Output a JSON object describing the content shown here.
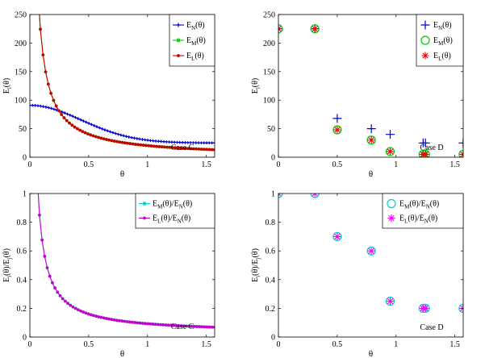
{
  "chart_data": [
    {
      "id": "top-left",
      "type": "line",
      "xlim": [
        0,
        1.5708
      ],
      "ylim": [
        0,
        250
      ],
      "xticks": [
        "0",
        "0.5",
        "1",
        "1.5"
      ],
      "xtick_values": [
        0,
        0.5,
        1,
        1.5
      ],
      "yticks": [
        "0",
        "50",
        "100",
        "150",
        "200",
        "250"
      ],
      "ytick_values": [
        0,
        50,
        100,
        150,
        200,
        250
      ],
      "xlabel": "θ",
      "ylabel": {
        "main": "E",
        "sub": "i",
        "tail": "(θ)"
      },
      "annotation": "Case C",
      "legend_position": "top-right",
      "series": [
        {
          "name": "E_N(θ)",
          "legend": {
            "main": "E",
            "sub": "N",
            "tail": "(θ)"
          },
          "color": "#0000cc",
          "marker": "plus",
          "formula": "a + b*exp(-c*theta^2)",
          "params": [
            25,
            66,
            2.6
          ],
          "points": 70
        },
        {
          "name": "E_M(θ)",
          "legend": {
            "main": "E",
            "sub": "M",
            "tail": "(θ)"
          },
          "color": "#00cc00",
          "marker": "asterisk",
          "formula": "a/theta + b",
          "params": [
            20,
            0.4
          ],
          "points": 70,
          "x_start": 0.022
        },
        {
          "name": "E_L(θ)",
          "legend": {
            "main": "E",
            "sub": "L",
            "tail": "(θ)"
          },
          "color": "#cc0000",
          "marker": "dot",
          "formula": "a/theta + b",
          "params": [
            20,
            0.4
          ],
          "points": 70,
          "x_start": 0.022
        }
      ]
    },
    {
      "id": "top-right",
      "type": "scatter",
      "xlim": [
        0,
        1.5708
      ],
      "ylim": [
        0,
        250
      ],
      "xticks": [
        "0",
        "0.5",
        "1",
        "1.5"
      ],
      "xtick_values": [
        0,
        0.5,
        1,
        1.5
      ],
      "yticks": [
        "0",
        "50",
        "100",
        "150",
        "200",
        "250"
      ],
      "ytick_values": [
        0,
        50,
        100,
        150,
        200,
        250
      ],
      "xlabel": "θ",
      "ylabel": {
        "main": "E",
        "sub": "i",
        "tail": "(θ)"
      },
      "annotation": "Case D",
      "legend_position": "top-right",
      "x": [
        0,
        0.31,
        0.5,
        0.79,
        0.95,
        1.23,
        1.25,
        1.57
      ],
      "series": [
        {
          "name": "E_N(θ)",
          "legend": {
            "main": "E",
            "sub": "N",
            "tail": "(θ)"
          },
          "color": "#0000cc",
          "marker": "plus",
          "values": [
            225,
            225,
            68,
            50,
            40,
            25,
            25,
            25
          ]
        },
        {
          "name": "E_M(θ)",
          "legend": {
            "main": "E",
            "sub": "M",
            "tail": "(θ)"
          },
          "color": "#00cc00",
          "marker": "circle",
          "values": [
            225,
            225,
            48,
            30,
            10,
            5,
            5,
            5
          ]
        },
        {
          "name": "E_L(θ)",
          "legend": {
            "main": "E",
            "sub": "L",
            "tail": "(θ)"
          },
          "color": "#ee0000",
          "marker": "asterisk",
          "values": [
            225,
            225,
            48,
            30,
            10,
            5,
            5,
            5
          ]
        }
      ]
    },
    {
      "id": "bottom-left",
      "type": "line",
      "xlim": [
        0,
        1.5708
      ],
      "ylim": [
        0,
        1
      ],
      "xticks": [
        "0",
        "0.5",
        "1",
        "1.5"
      ],
      "xtick_values": [
        0,
        0.5,
        1,
        1.5
      ],
      "yticks": [
        "0",
        "0.2",
        "0.4",
        "0.6",
        "0.8",
        "1"
      ],
      "ytick_values": [
        0,
        0.2,
        0.4,
        0.6,
        0.8,
        1
      ],
      "xlabel": "θ",
      "ylabel": {
        "main": "E",
        "sub": "i",
        "tail": "(θ)/E",
        "sub2": "j",
        "tail2": "(θ)"
      },
      "annotation": "Case C",
      "legend_position": "top-right",
      "series": [
        {
          "name": "E_M(θ)/E_N(θ)",
          "legend": {
            "main": "E",
            "sub": "M",
            "tail": "(θ)/E",
            "sub2": "N",
            "tail2": "(θ)"
          },
          "color": "#00cccc",
          "marker": "asterisk",
          "formula": "a/theta + b",
          "params": [
            0.0675,
            0.0255
          ],
          "points": 70,
          "x_start": 0.06
        },
        {
          "name": "E_L(θ)/E_N(θ)",
          "legend": {
            "main": "E",
            "sub": "L",
            "tail": "(θ)/E",
            "sub2": "N",
            "tail2": "(θ)"
          },
          "color": "#cc00cc",
          "marker": "dot",
          "formula": "a/theta + b",
          "params": [
            0.0675,
            0.0255
          ],
          "points": 70,
          "x_start": 0.06
        }
      ]
    },
    {
      "id": "bottom-right",
      "type": "scatter",
      "xlim": [
        0,
        1.5708
      ],
      "ylim": [
        0,
        1
      ],
      "xticks": [
        "0",
        "0.5",
        "1",
        "1.5"
      ],
      "xtick_values": [
        0,
        0.5,
        1,
        1.5
      ],
      "yticks": [
        "0",
        "0.2",
        "0.4",
        "0.6",
        "0.8",
        "1"
      ],
      "ytick_values": [
        0,
        0.2,
        0.4,
        0.6,
        0.8,
        1
      ],
      "xlabel": "θ",
      "ylabel": {
        "main": "E",
        "sub": "i",
        "tail": "(θ)/E",
        "sub2": "j",
        "tail2": "(θ)"
      },
      "annotation": "Case D",
      "legend_position": "top-right",
      "x": [
        0,
        0.31,
        0.5,
        0.79,
        0.95,
        1.23,
        1.25,
        1.57
      ],
      "series": [
        {
          "name": "E_M(θ)/E_N(θ)",
          "legend": {
            "main": "E",
            "sub": "M",
            "tail": "(θ)/E",
            "sub2": "N",
            "tail2": "(θ)"
          },
          "color": "#00cccc",
          "marker": "circle",
          "values": [
            1,
            1,
            0.7,
            0.6,
            0.25,
            0.2,
            0.2,
            0.2
          ]
        },
        {
          "name": "E_L(θ)/E_N(θ)",
          "legend": {
            "main": "E",
            "sub": "L",
            "tail": "(θ)/E",
            "sub2": "N",
            "tail2": "(θ)"
          },
          "color": "#ff00ff",
          "marker": "asterisk",
          "values": [
            1,
            1,
            0.7,
            0.6,
            0.25,
            0.2,
            0.2,
            0.2
          ]
        }
      ]
    }
  ]
}
